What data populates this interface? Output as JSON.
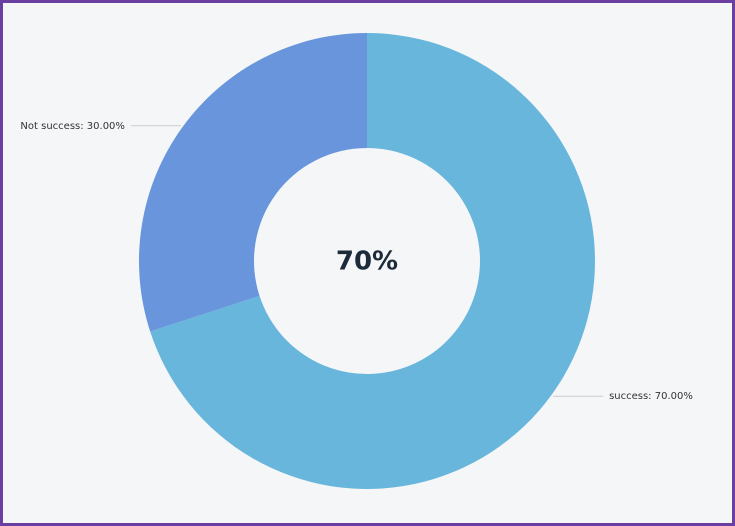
{
  "chart_data": {
    "type": "pie",
    "values": [
      70,
      30
    ],
    "value_labels": [
      "success: 70.00%",
      "Not success: 30.00%"
    ],
    "colors": [
      "#68b6dc",
      "#6895dc"
    ],
    "center_label": "70%"
  }
}
